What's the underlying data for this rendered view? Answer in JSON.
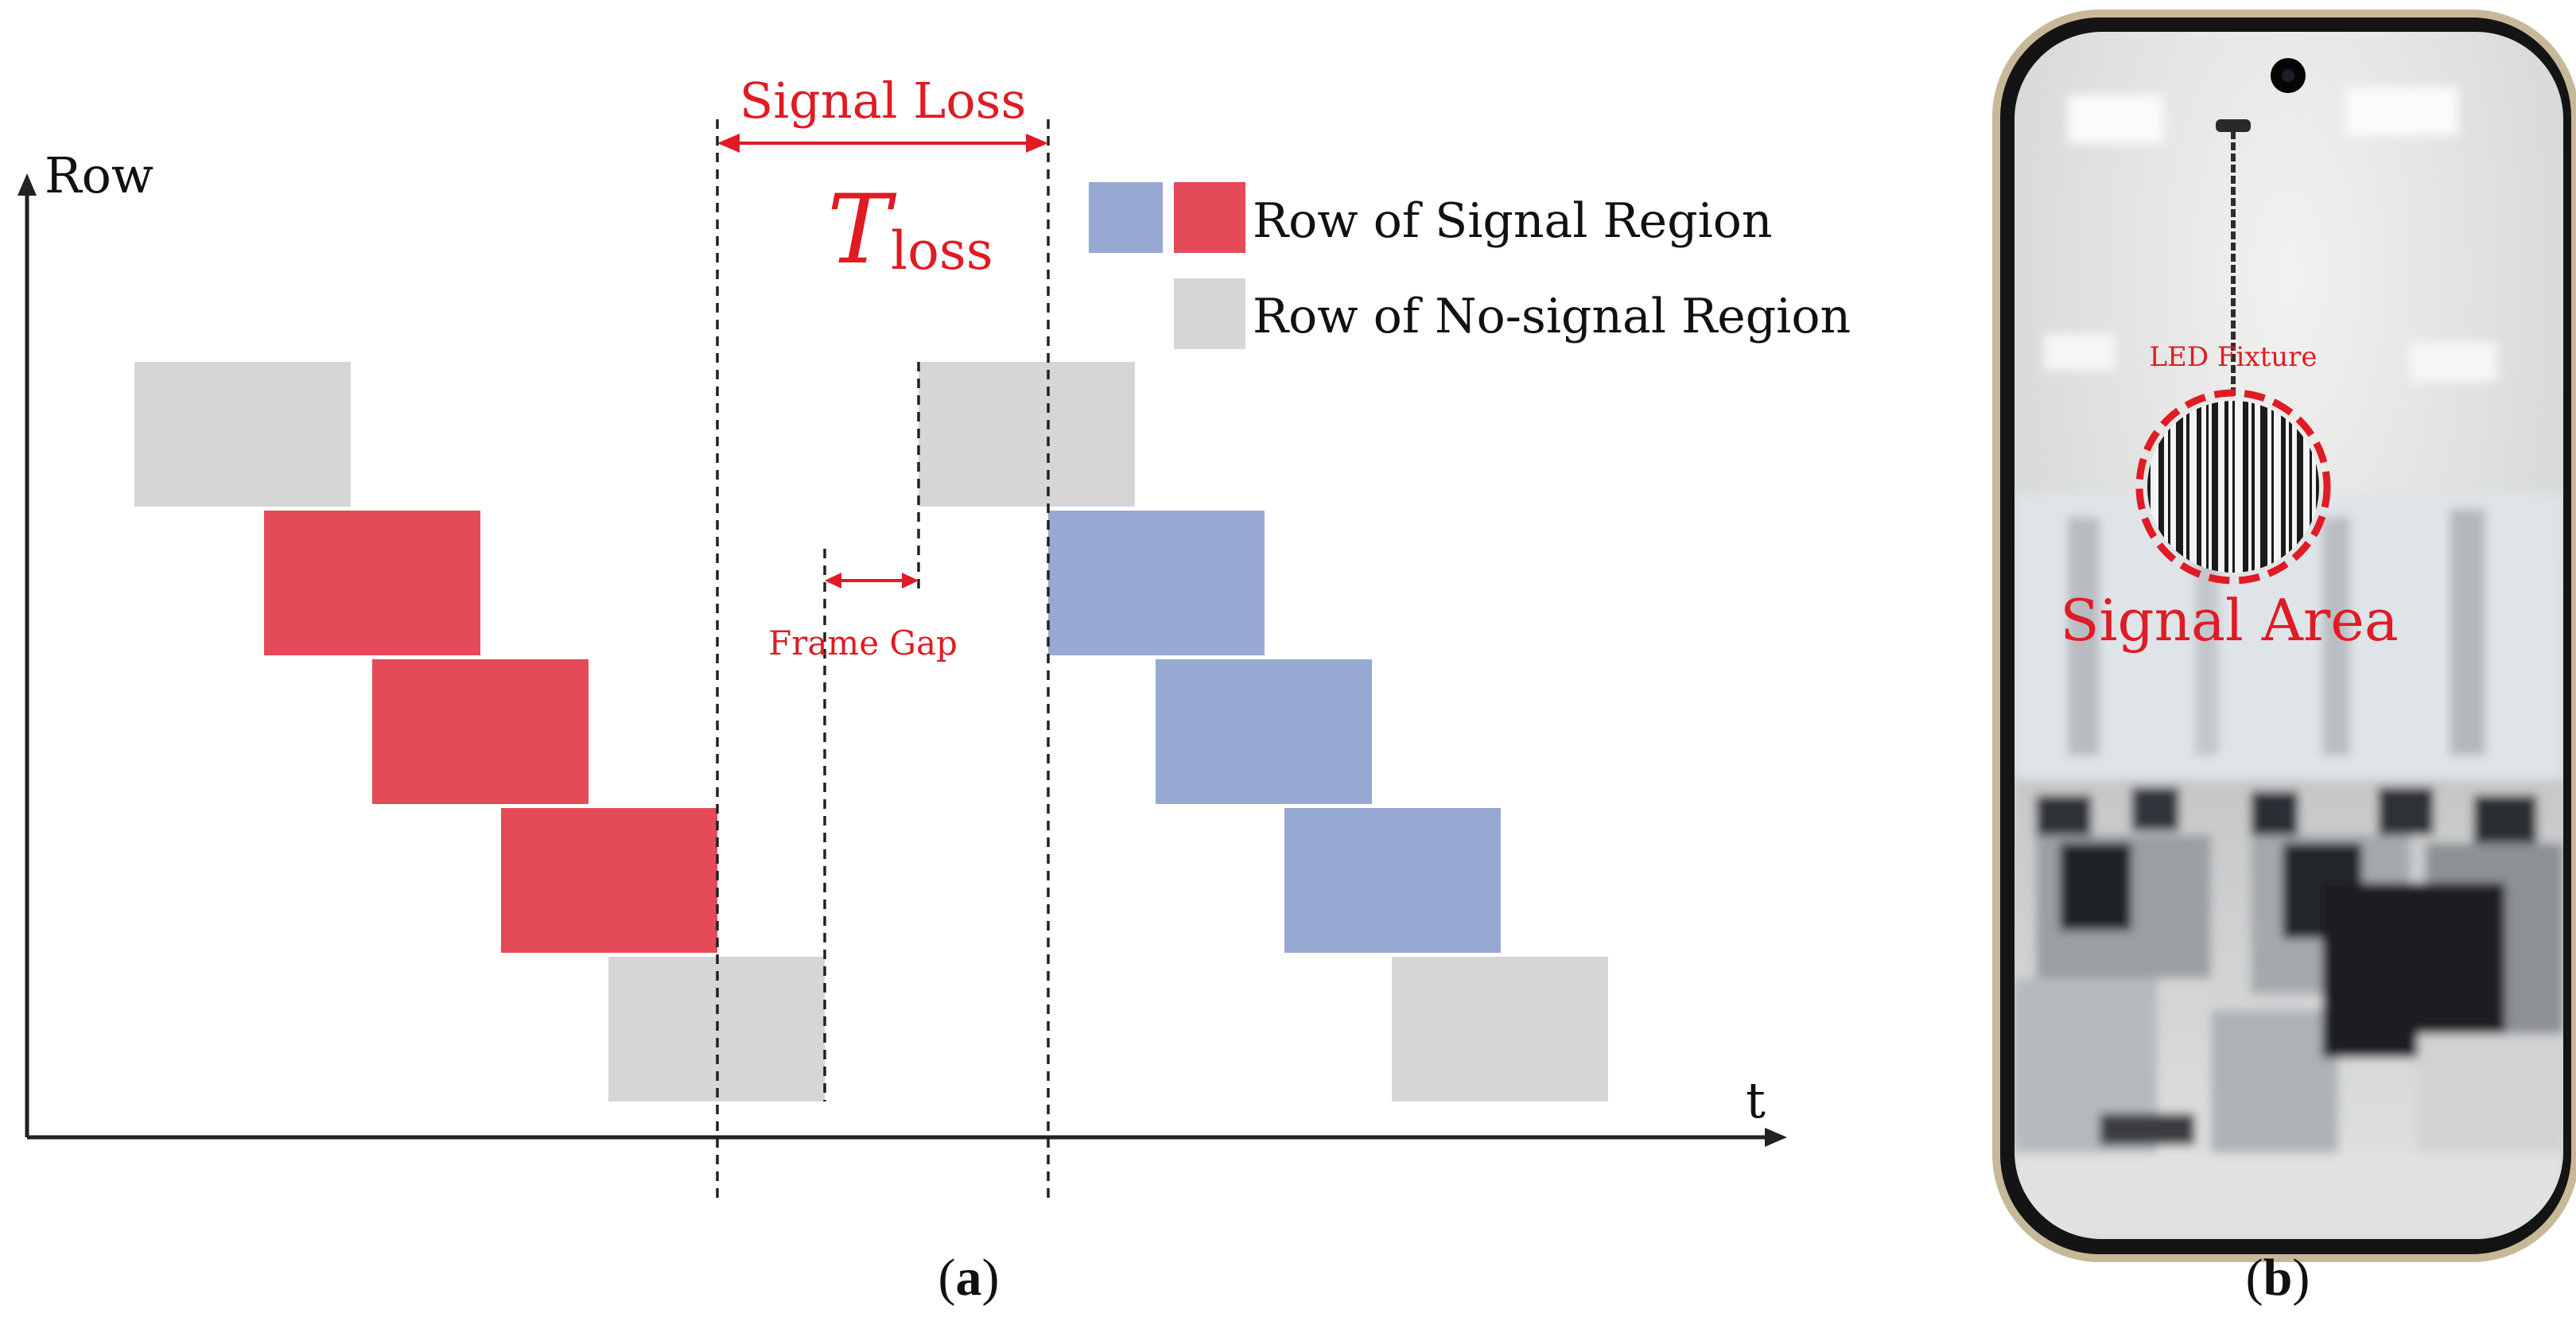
{
  "figure": {
    "panel_a": {
      "label": "a",
      "axis": {
        "y_label": "Row",
        "x_label": "t"
      },
      "legend": {
        "signal": "Row of Signal Region",
        "no_signal": "Row of No-signal Region"
      },
      "annotations": {
        "signal_loss": "Signal Loss",
        "t_symbol": "T",
        "t_subscript": "loss",
        "frame_gap": "Frame Gap"
      },
      "frames": [
        {
          "name": "frame-1",
          "rows": [
            "no-signal",
            "signal-red",
            "signal-red",
            "signal-red",
            "no-signal"
          ]
        },
        {
          "name": "frame-2",
          "rows": [
            "no-signal",
            "signal-blue",
            "signal-blue",
            "signal-blue",
            "no-signal"
          ]
        }
      ]
    },
    "panel_b": {
      "label": "b",
      "fixture_label": "LED Fixture",
      "area_label": "Signal Area"
    }
  },
  "colors": {
    "signal_red": "#e44a57",
    "signal_blue": "#97a8d2",
    "no_signal_gray": "#d6d6d6",
    "annotation_red": "#e01b24",
    "axis": "#222222"
  }
}
